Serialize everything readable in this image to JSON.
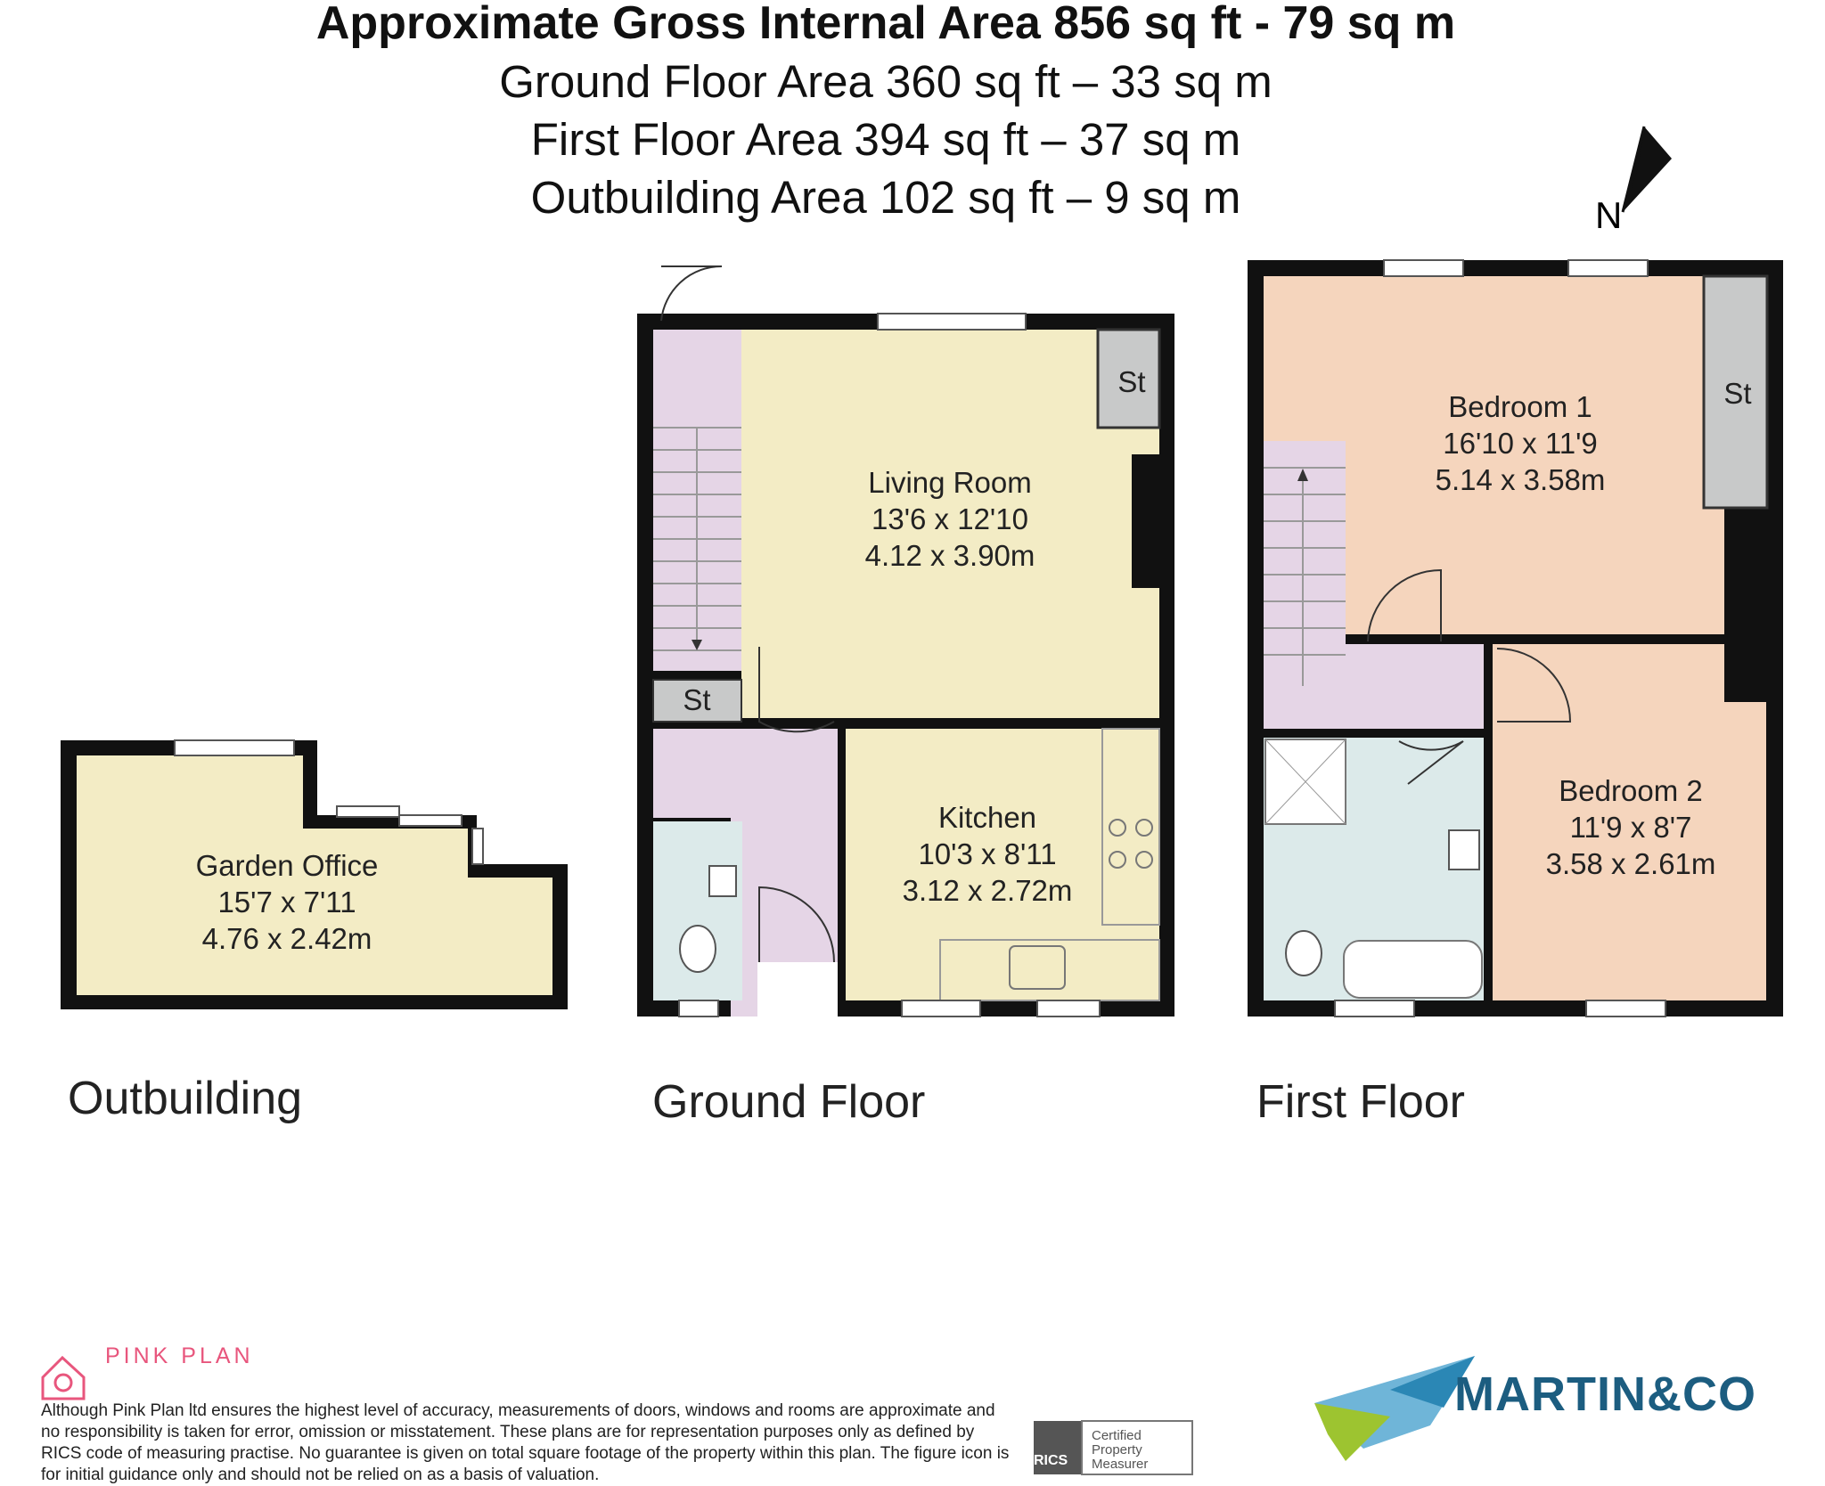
{
  "header": {
    "gross_area": "Approximate Gross Internal Area 856 sq ft - 79 sq m",
    "ground_area": "Ground Floor Area 360 sq ft – 33 sq m",
    "first_area": "First Floor Area 394 sq ft – 37 sq m",
    "outbuilding_area": "Outbuilding Area 102 sq ft – 9 sq m"
  },
  "compass": {
    "label": "N"
  },
  "floors": {
    "outbuilding": "Outbuilding",
    "ground": "Ground Floor",
    "first": "First Floor"
  },
  "rooms": {
    "garden_office": {
      "name": "Garden Office",
      "imperial": "15'7 x 7'11",
      "metric": "4.76 x 2.42m"
    },
    "living_room": {
      "name": "Living Room",
      "imperial": "13'6 x 12'10",
      "metric": "4.12 x 3.90m"
    },
    "kitchen": {
      "name": "Kitchen",
      "imperial": "10'3 x 8'11",
      "metric": "3.12 x 2.72m"
    },
    "bedroom1": {
      "name": "Bedroom 1",
      "imperial": "16'10 x 11'9",
      "metric": "5.14 x 3.58m"
    },
    "bedroom2": {
      "name": "Bedroom 2",
      "imperial": "11'9 x 8'7",
      "metric": "3.58 x 2.61m"
    },
    "store": "St"
  },
  "footer": {
    "brand": "PINK PLAN",
    "disclaimer": "Although Pink Plan ltd ensures the highest level of accuracy, measurements of doors, windows and rooms are approximate and no responsibility is taken for error, omission or misstatement. These plans are for representation purposes only as defined by RICS code of measuring practise. No guarantee is given on total square footage of the property within this plan. The figure icon is for initial guidance only and should not be relied on as a basis of valuation.",
    "rics": "RICS",
    "rics_label_1": "Certified",
    "rics_label_2": "Property",
    "rics_label_3": "Measurer",
    "agent": "MARTIN&CO"
  },
  "colors": {
    "wall": "#111111",
    "living": "#f3ecc5",
    "bedroom": "#f5d5bd",
    "hall": "#e5d5e6",
    "bath": "#dceaea",
    "store": "#c8c9c9",
    "brand_pink": "#e8567d",
    "agent_blue": "#1c5d80"
  }
}
